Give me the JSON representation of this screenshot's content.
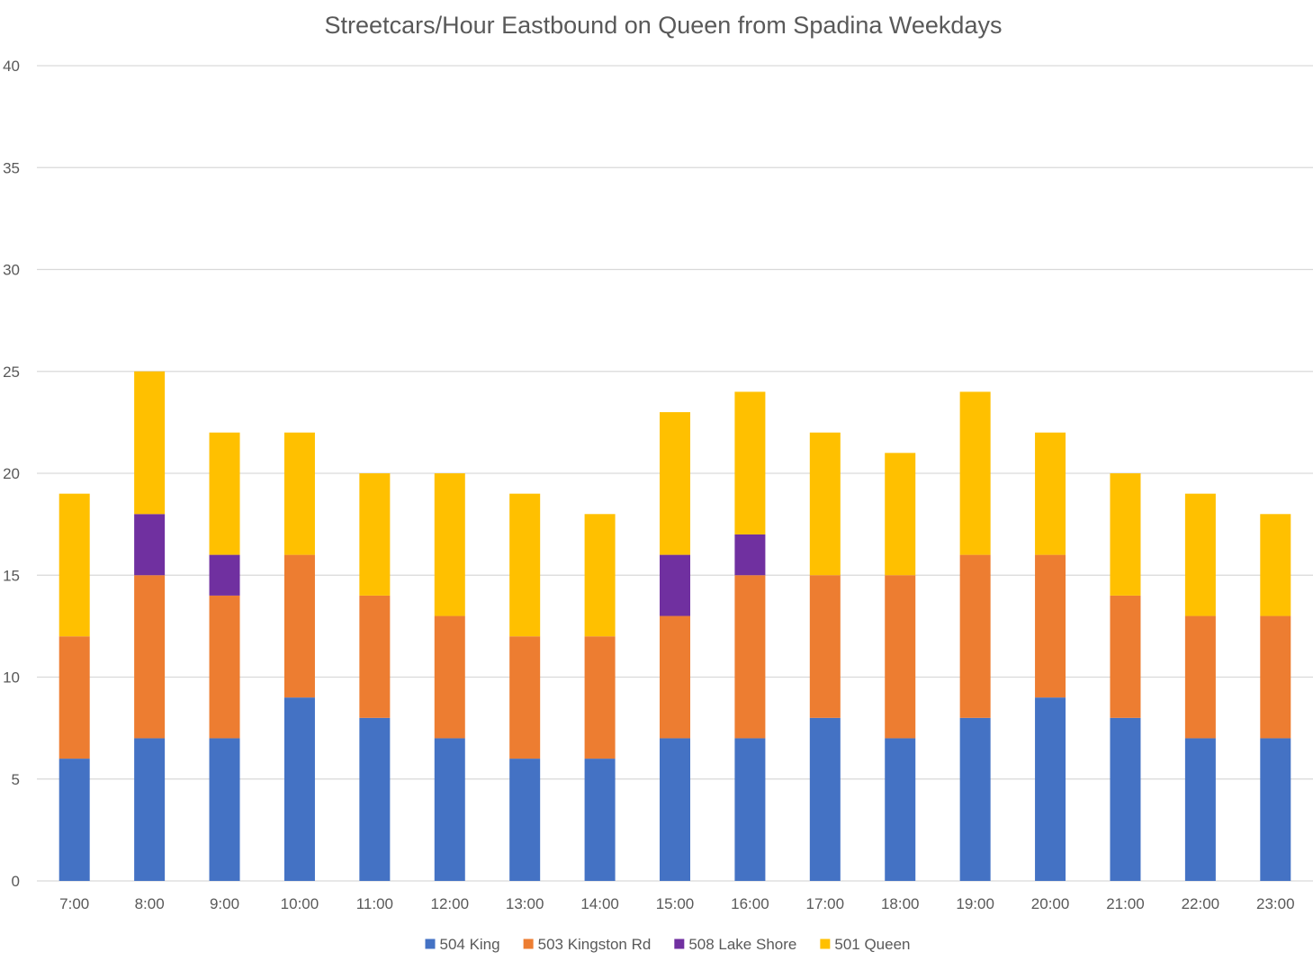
{
  "chart_data": {
    "type": "bar",
    "stacked": true,
    "title": "Streetcars/Hour Eastbound on Queen from Spadina Weekdays",
    "xlabel": "",
    "ylabel": "",
    "ylim": [
      0,
      40
    ],
    "yticks": [
      "0",
      "5",
      "10",
      "15",
      "20",
      "25",
      "30",
      "35",
      "40"
    ],
    "grid": true,
    "legend_position": "bottom",
    "categories": [
      "7:00",
      "8:00",
      "9:00",
      "10:00",
      "11:00",
      "12:00",
      "13:00",
      "14:00",
      "15:00",
      "16:00",
      "17:00",
      "18:00",
      "19:00",
      "20:00",
      "21:00",
      "22:00",
      "23:00"
    ],
    "series": [
      {
        "name": "504 King",
        "color": "#4472C4",
        "values": [
          6,
          7,
          7,
          9,
          8,
          7,
          6,
          6,
          7,
          7,
          8,
          7,
          8,
          9,
          8,
          7,
          7
        ]
      },
      {
        "name": "503 Kingston Rd",
        "color": "#ED7D31",
        "values": [
          6,
          8,
          7,
          7,
          6,
          6,
          6,
          6,
          6,
          8,
          7,
          8,
          8,
          7,
          6,
          6,
          6
        ]
      },
      {
        "name": "508 Lake Shore",
        "color": "#7030A0",
        "values": [
          0,
          3,
          2,
          0,
          0,
          0,
          0,
          0,
          3,
          2,
          0,
          0,
          0,
          0,
          0,
          0,
          0
        ]
      },
      {
        "name": "501 Queen",
        "color": "#FFC000",
        "values": [
          7,
          7,
          6,
          6,
          6,
          7,
          7,
          6,
          7,
          7,
          7,
          6,
          8,
          6,
          6,
          6,
          5
        ]
      }
    ]
  }
}
